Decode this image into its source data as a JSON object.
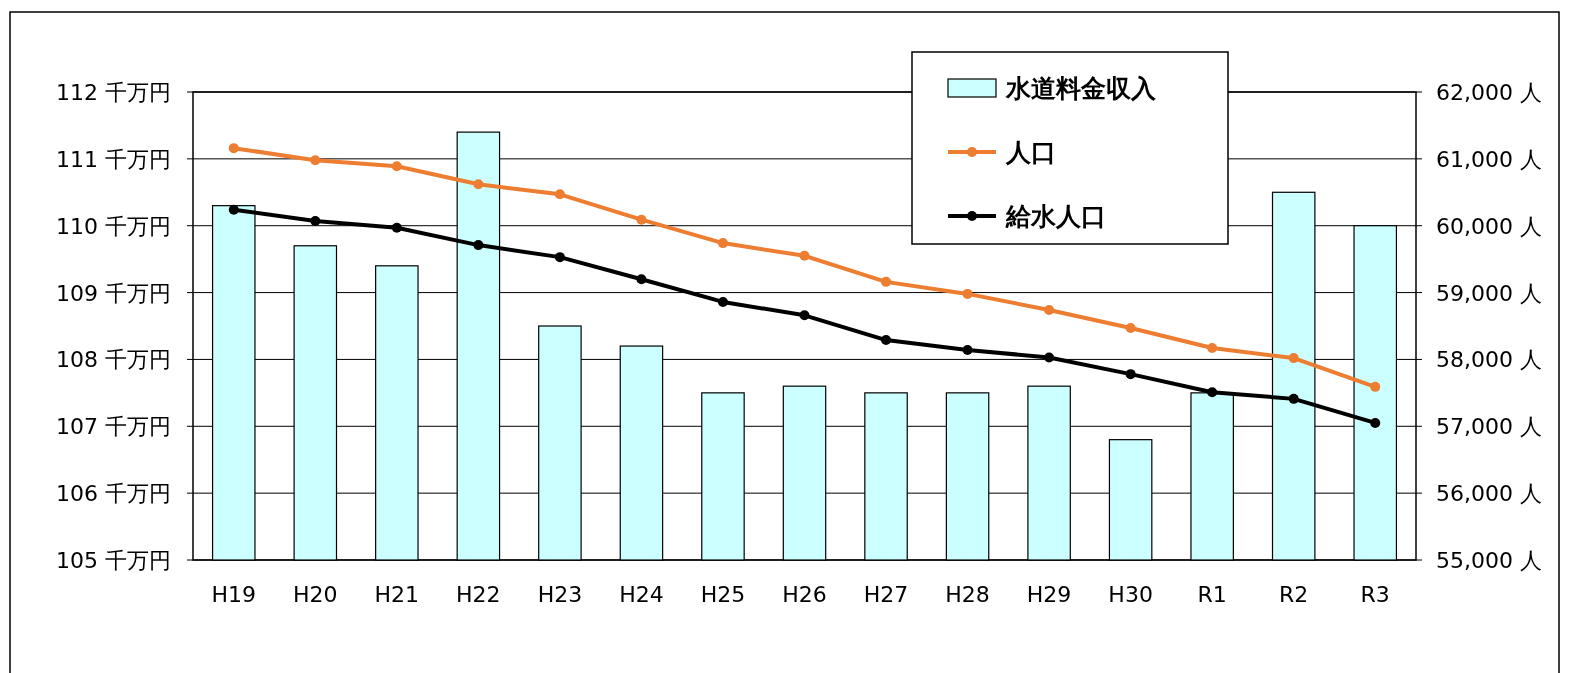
{
  "chart_data": {
    "type": "bar",
    "categories": [
      "H19",
      "H20",
      "H21",
      "H22",
      "H23",
      "H24",
      "H25",
      "H26",
      "H27",
      "H28",
      "H29",
      "H30",
      "R1",
      "R2",
      "R3"
    ],
    "series": [
      {
        "name": "水道料金収入",
        "color": "#ccffff",
        "values": [
          110.3,
          109.7,
          109.4,
          111.4,
          108.5,
          108.2,
          107.5,
          107.6,
          107.5,
          107.5,
          107.6,
          106.8,
          107.5,
          110.5,
          110.0
        ]
      },
      {
        "name": "人口",
        "type": "line",
        "axis": "y2",
        "color": "#ed7d31",
        "values": [
          61160,
          60980,
          60890,
          60620,
          60470,
          60090,
          59740,
          59550,
          59160,
          58980,
          58740,
          58470,
          58170,
          58020,
          57590
        ]
      },
      {
        "name": "給水人口",
        "type": "line",
        "axis": "y2",
        "color": "#000000",
        "values": [
          60240,
          60070,
          59970,
          59710,
          59530,
          59200,
          58860,
          58660,
          58290,
          58140,
          58030,
          57780,
          57510,
          57410,
          57050
        ]
      }
    ],
    "ylim": [
      105,
      112
    ],
    "yticks": [
      {
        "value": 105,
        "label": "105 千万円"
      },
      {
        "value": 106,
        "label": "106 千万円"
      },
      {
        "value": 107,
        "label": "107 千万円"
      },
      {
        "value": 108,
        "label": "108 千万円"
      },
      {
        "value": 109,
        "label": "109 千万円"
      },
      {
        "value": 110,
        "label": "110 千万円"
      },
      {
        "value": 111,
        "label": "111 千万円"
      },
      {
        "value": 112,
        "label": "112 千万円"
      }
    ],
    "y2lim": [
      55000,
      62000
    ],
    "y2ticks": [
      {
        "value": 55000,
        "label": "55,000 人"
      },
      {
        "value": 56000,
        "label": "56,000 人"
      },
      {
        "value": 57000,
        "label": "57,000 人"
      },
      {
        "value": 58000,
        "label": "58,000 人"
      },
      {
        "value": 59000,
        "label": "59,000 人"
      },
      {
        "value": 60000,
        "label": "60,000 人"
      },
      {
        "value": 61000,
        "label": "61,000 人"
      },
      {
        "value": 62000,
        "label": "62,000 人"
      }
    ],
    "grid": "y",
    "legend": "top right",
    "marker": "circle",
    "line_style": "solid"
  }
}
